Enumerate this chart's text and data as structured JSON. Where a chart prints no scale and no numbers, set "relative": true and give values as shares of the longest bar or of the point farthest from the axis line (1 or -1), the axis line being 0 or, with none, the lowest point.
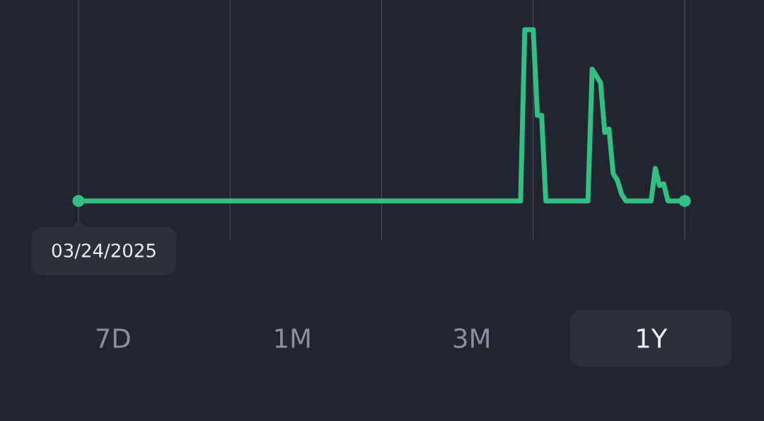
{
  "chart_data": {
    "type": "line",
    "categories": [
      null,
      null,
      null,
      null,
      null,
      null,
      null,
      null,
      null,
      null,
      null,
      null,
      null,
      null,
      null,
      null,
      null,
      null,
      null,
      null,
      null,
      null,
      null,
      null,
      null,
      null,
      null,
      null,
      null,
      null,
      null,
      null,
      null,
      null,
      null,
      null,
      null,
      null,
      null,
      null,
      null,
      null,
      null,
      null,
      null,
      null,
      null,
      null,
      null,
      null,
      null,
      null,
      null,
      null,
      null,
      null,
      null,
      null,
      null,
      null,
      null,
      null,
      null,
      null,
      null,
      null,
      null,
      null,
      null,
      null,
      null,
      null,
      null,
      null,
      null,
      null,
      null,
      null,
      null,
      null,
      null,
      null,
      null,
      null,
      null,
      null,
      null,
      null,
      null,
      null,
      null,
      null,
      null,
      null,
      null,
      null,
      null,
      null,
      null,
      null,
      null,
      null,
      null,
      null,
      null,
      null,
      null,
      null,
      null,
      null,
      null,
      null,
      null,
      null,
      null,
      null,
      null,
      null,
      null,
      null,
      null,
      null,
      null,
      null,
      null,
      null,
      null,
      null,
      null,
      null,
      null,
      null,
      null,
      null,
      null,
      null,
      null,
      null,
      null,
      null,
      null,
      null,
      null,
      null,
      null
    ],
    "values": [
      0,
      0,
      0,
      0,
      0,
      0,
      0,
      0,
      0,
      0,
      0,
      0,
      0,
      0,
      0,
      0,
      0,
      0,
      0,
      0,
      0,
      0,
      0,
      0,
      0,
      0,
      0,
      0,
      0,
      0,
      0,
      0,
      0,
      0,
      0,
      0,
      0,
      0,
      0,
      0,
      0,
      0,
      0,
      0,
      0,
      0,
      0,
      0,
      0,
      0,
      0,
      0,
      0,
      0,
      0,
      0,
      0,
      0,
      0,
      0,
      0,
      0,
      0,
      0,
      0,
      0,
      0,
      0,
      0,
      0,
      0,
      0,
      0,
      0,
      0,
      0,
      0,
      0,
      0,
      0,
      0,
      0,
      0,
      0,
      0,
      0,
      0,
      0,
      0,
      0,
      0,
      0,
      0,
      0,
      0,
      0,
      0,
      0,
      0,
      0,
      0,
      0,
      0,
      0,
      0,
      0,
      1,
      1,
      1,
      0.5,
      0.5,
      0,
      0,
      0,
      0,
      0,
      0,
      0,
      0,
      0,
      0,
      0,
      0.77,
      0.73,
      0.69,
      0.4,
      0.42,
      0.16,
      0.12,
      0.04,
      0,
      0,
      0,
      0,
      0,
      0,
      0,
      0.19,
      0.09,
      0.1,
      0,
      0,
      0,
      0,
      0
    ],
    "color": "#33be84",
    "relative": true,
    "grid": "x",
    "annotations": [
      "03/24/2025",
      "7D",
      "1M",
      "3M",
      "1Y"
    ]
  }
}
